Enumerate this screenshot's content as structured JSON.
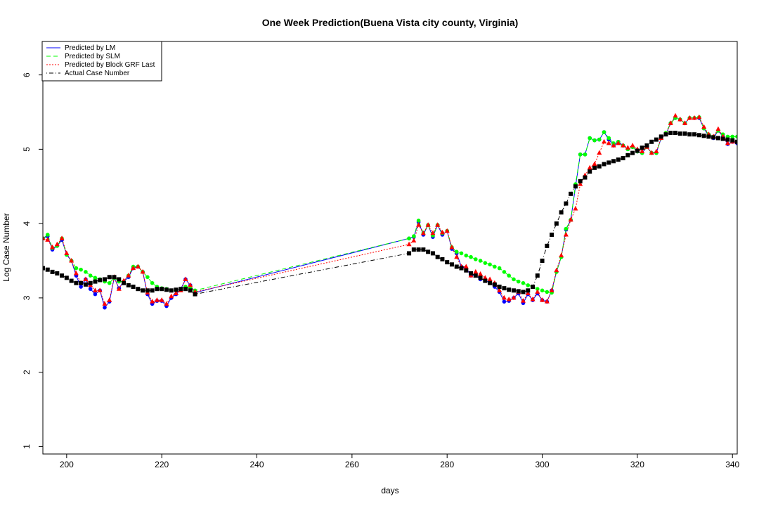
{
  "chart_data": {
    "type": "line",
    "title": "One Week Prediction(Buena Vista city county, Virginia)",
    "xlabel": "days",
    "ylabel": "Log Case Number",
    "xlim": [
      195,
      341
    ],
    "ylim": [
      0.9,
      6.45
    ],
    "xticks": [
      200,
      220,
      240,
      260,
      280,
      300,
      320,
      340
    ],
    "yticks": [
      1,
      2,
      3,
      4,
      5,
      6
    ],
    "legend_position": "top-left",
    "x": [
      195,
      196,
      197,
      198,
      199,
      200,
      201,
      202,
      203,
      204,
      205,
      206,
      207,
      208,
      209,
      210,
      211,
      212,
      213,
      214,
      215,
      216,
      217,
      218,
      219,
      220,
      221,
      222,
      223,
      224,
      225,
      226,
      227,
      272,
      273,
      274,
      275,
      276,
      277,
      278,
      279,
      280,
      281,
      282,
      283,
      284,
      285,
      286,
      287,
      288,
      289,
      290,
      291,
      292,
      293,
      294,
      295,
      296,
      297,
      298,
      299,
      300,
      301,
      302,
      303,
      304,
      305,
      306,
      307,
      308,
      309,
      310,
      311,
      312,
      313,
      314,
      315,
      316,
      317,
      318,
      319,
      320,
      321,
      322,
      323,
      324,
      325,
      326,
      327,
      328,
      329,
      330,
      331,
      332,
      333,
      334,
      335,
      336,
      337,
      338,
      339,
      340,
      341
    ],
    "series": [
      {
        "name": "Predicted by LM",
        "color": "#0000ff",
        "line": "solid",
        "marker": "circle",
        "values": [
          3.8,
          3.83,
          3.65,
          3.7,
          3.78,
          3.58,
          3.5,
          3.3,
          3.15,
          3.25,
          3.12,
          3.05,
          3.1,
          2.87,
          2.95,
          3.27,
          3.13,
          3.22,
          3.28,
          3.4,
          3.42,
          3.35,
          3.05,
          2.92,
          2.96,
          2.96,
          2.89,
          3.0,
          3.05,
          3.12,
          3.25,
          3.17,
          3.07,
          3.8,
          3.82,
          4.02,
          3.85,
          3.98,
          3.82,
          3.98,
          3.85,
          3.9,
          3.66,
          3.6,
          3.42,
          3.4,
          3.3,
          3.3,
          3.25,
          3.24,
          3.2,
          3.15,
          3.08,
          2.95,
          2.96,
          3.0,
          3.06,
          2.93,
          3.05,
          2.97,
          3.06,
          2.97,
          2.95,
          3.1,
          3.35,
          3.55,
          3.92,
          4.05,
          4.5,
          4.93,
          4.93,
          5.15,
          5.12,
          5.13,
          5.23,
          5.13,
          5.05,
          5.1,
          5.05,
          5.0,
          5.03,
          4.97,
          4.95,
          5.03,
          4.95,
          4.95,
          5.15,
          5.2,
          5.35,
          5.42,
          5.4,
          5.35,
          5.42,
          5.42,
          5.42,
          5.28,
          5.18,
          5.15,
          5.25,
          5.17,
          5.07,
          5.1,
          5.08
        ]
      },
      {
        "name": "Predicted by SLM",
        "color": "#00ff00",
        "line": "dashed",
        "marker": "circle",
        "values": [
          3.8,
          3.85,
          3.67,
          3.7,
          3.8,
          3.58,
          3.5,
          3.4,
          3.38,
          3.35,
          3.3,
          3.27,
          3.25,
          3.22,
          3.2,
          3.27,
          3.22,
          3.22,
          3.3,
          3.42,
          3.42,
          3.35,
          3.28,
          3.2,
          3.15,
          3.13,
          3.12,
          3.1,
          3.1,
          3.12,
          3.15,
          3.13,
          3.1,
          3.8,
          3.83,
          4.04,
          3.87,
          3.98,
          3.84,
          3.98,
          3.87,
          3.9,
          3.68,
          3.62,
          3.6,
          3.57,
          3.55,
          3.52,
          3.5,
          3.47,
          3.45,
          3.42,
          3.4,
          3.35,
          3.3,
          3.25,
          3.22,
          3.2,
          3.17,
          3.15,
          3.12,
          3.1,
          3.08,
          3.07,
          3.35,
          3.55,
          3.93,
          4.05,
          4.53,
          4.93,
          4.93,
          5.15,
          5.12,
          5.13,
          5.23,
          5.15,
          5.08,
          5.1,
          5.05,
          5.0,
          5.03,
          4.97,
          4.95,
          5.03,
          4.95,
          4.95,
          5.15,
          5.22,
          5.35,
          5.42,
          5.4,
          5.35,
          5.42,
          5.42,
          5.43,
          5.28,
          5.2,
          5.17,
          5.25,
          5.2,
          5.17,
          5.17,
          5.17
        ]
      },
      {
        "name": "Predicted by Block GRF Last",
        "color": "#ff0000",
        "line": "dotted",
        "marker": "triangle",
        "values": [
          3.8,
          3.78,
          3.68,
          3.72,
          3.8,
          3.6,
          3.5,
          3.33,
          3.2,
          3.25,
          3.17,
          3.1,
          3.1,
          2.92,
          2.97,
          3.28,
          3.12,
          3.23,
          3.3,
          3.4,
          3.42,
          3.35,
          3.07,
          2.95,
          2.97,
          2.97,
          2.92,
          3.02,
          3.06,
          3.1,
          3.25,
          3.17,
          3.08,
          3.72,
          3.77,
          3.98,
          3.87,
          3.98,
          3.87,
          3.98,
          3.88,
          3.9,
          3.68,
          3.55,
          3.42,
          3.42,
          3.3,
          3.35,
          3.32,
          3.27,
          3.25,
          3.2,
          3.1,
          3.0,
          2.98,
          3.0,
          3.08,
          2.96,
          3.06,
          2.98,
          3.08,
          2.97,
          2.95,
          3.1,
          3.37,
          3.57,
          3.85,
          4.05,
          4.2,
          4.53,
          4.65,
          4.75,
          4.8,
          4.95,
          5.1,
          5.08,
          5.05,
          5.08,
          5.05,
          5.02,
          5.05,
          5.0,
          4.97,
          5.03,
          4.95,
          4.97,
          5.15,
          5.2,
          5.35,
          5.45,
          5.4,
          5.35,
          5.42,
          5.42,
          5.43,
          5.3,
          5.2,
          5.17,
          5.27,
          5.17,
          5.08,
          5.1,
          5.1
        ]
      },
      {
        "name": "Actual Case Number",
        "color": "#000000",
        "line": "dashdot",
        "marker": "square",
        "values": [
          3.4,
          3.38,
          3.35,
          3.33,
          3.3,
          3.27,
          3.23,
          3.2,
          3.2,
          3.18,
          3.2,
          3.22,
          3.24,
          3.25,
          3.28,
          3.28,
          3.25,
          3.2,
          3.17,
          3.15,
          3.12,
          3.1,
          3.1,
          3.1,
          3.12,
          3.12,
          3.11,
          3.1,
          3.11,
          3.12,
          3.12,
          3.1,
          3.05,
          3.6,
          3.65,
          3.65,
          3.65,
          3.62,
          3.6,
          3.55,
          3.52,
          3.48,
          3.45,
          3.42,
          3.4,
          3.37,
          3.33,
          3.3,
          3.27,
          3.23,
          3.2,
          3.18,
          3.15,
          3.13,
          3.11,
          3.1,
          3.09,
          3.08,
          3.1,
          3.15,
          3.3,
          3.5,
          3.7,
          3.85,
          4.0,
          4.15,
          4.27,
          4.4,
          4.5,
          4.57,
          4.62,
          4.7,
          4.75,
          4.77,
          4.8,
          4.82,
          4.84,
          4.86,
          4.88,
          4.92,
          4.95,
          4.98,
          5.02,
          5.05,
          5.1,
          5.13,
          5.17,
          5.2,
          5.22,
          5.22,
          5.21,
          5.21,
          5.2,
          5.2,
          5.19,
          5.18,
          5.17,
          5.16,
          5.15,
          5.14,
          5.13,
          5.12,
          5.1
        ]
      }
    ]
  }
}
